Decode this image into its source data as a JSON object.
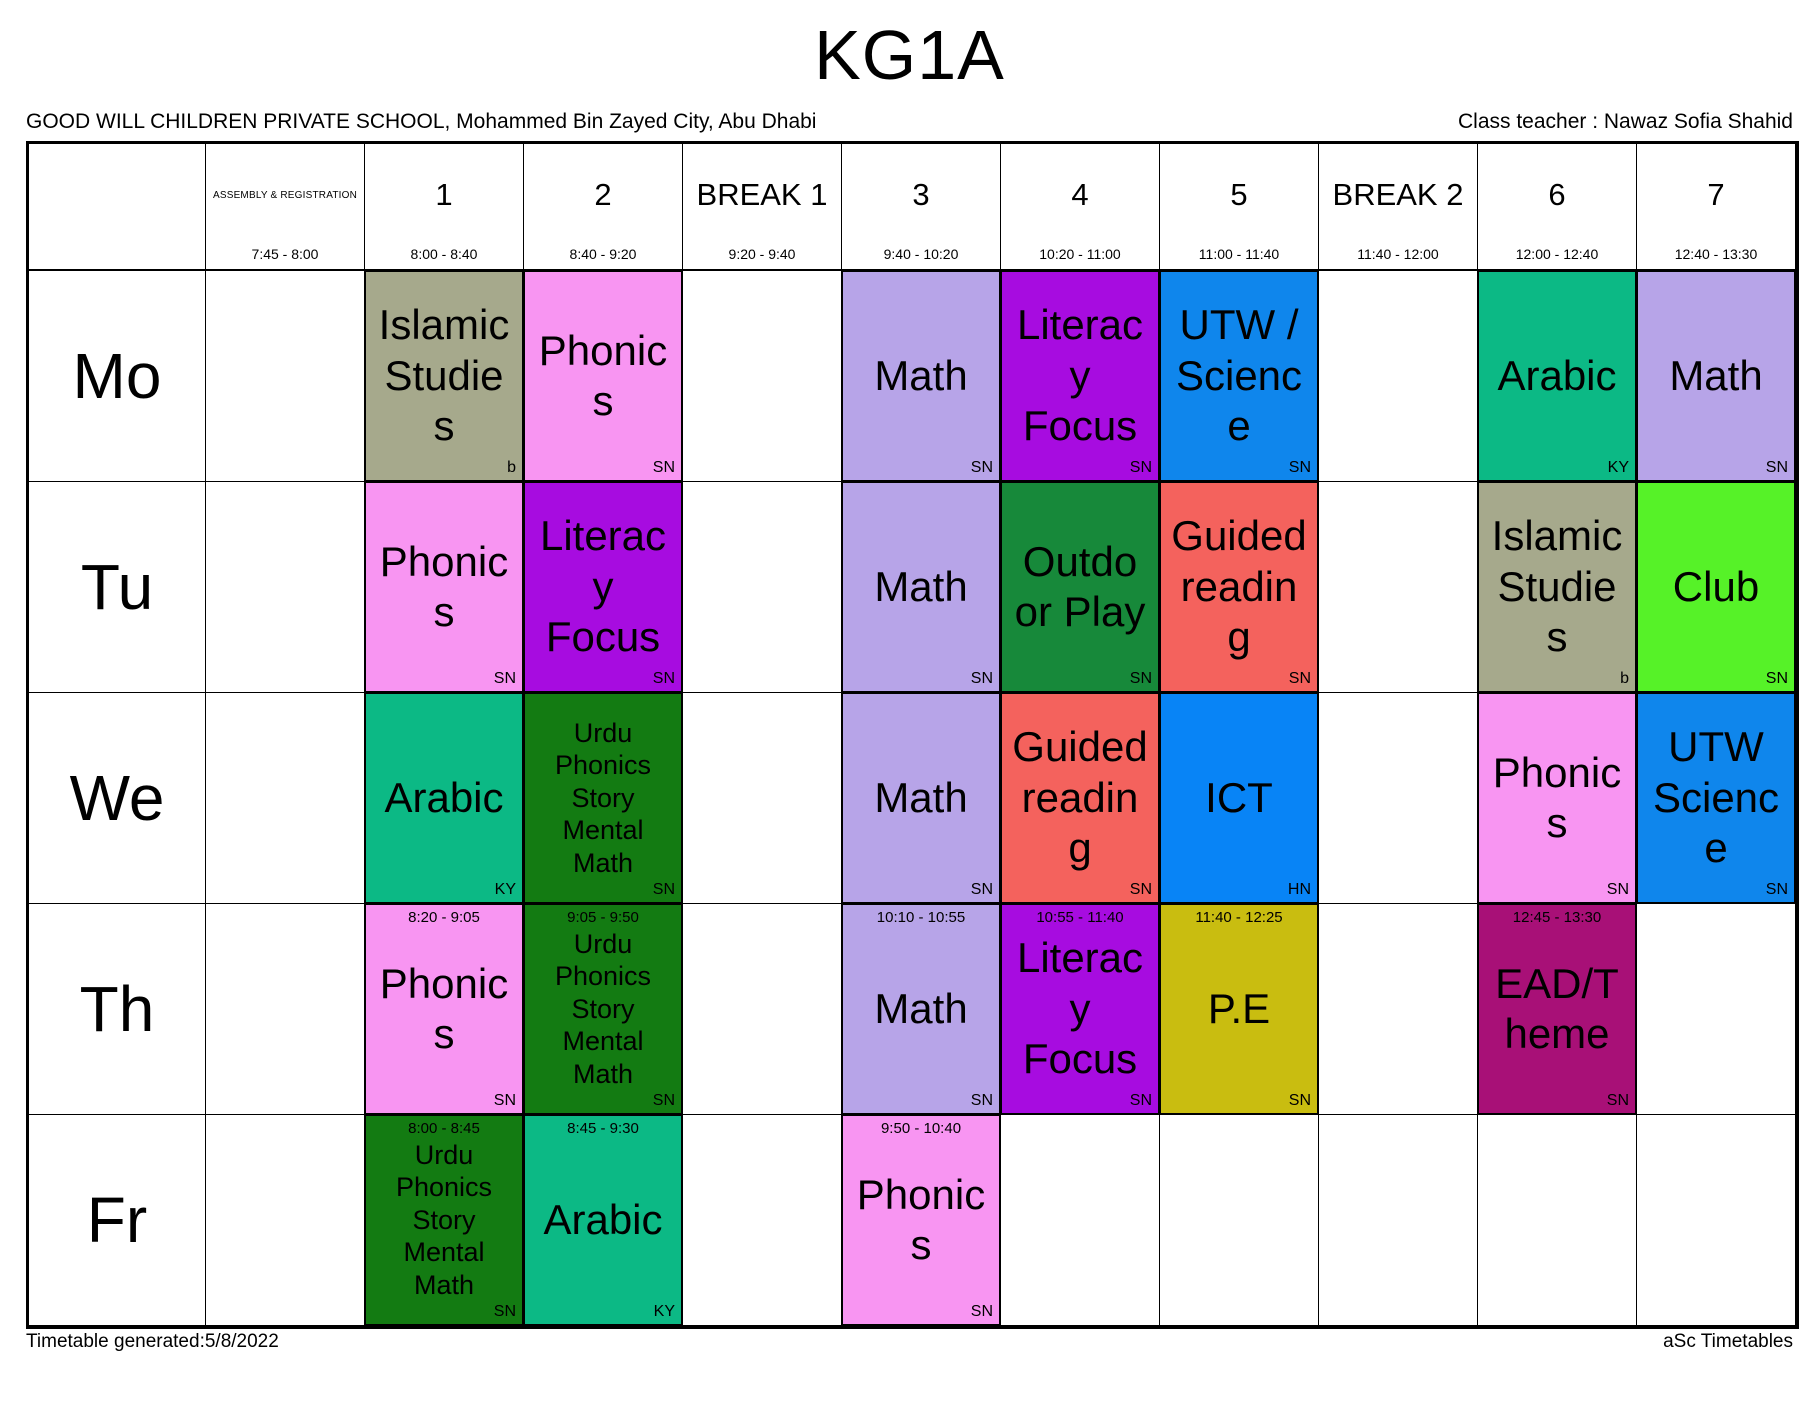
{
  "page": {
    "title": "KG1A",
    "school": "GOOD WILL CHILDREN PRIVATE SCHOOL, Mohammed Bin Zayed City, Abu Dhabi",
    "class_teacher": "Class teacher : Nawaz Sofia Shahid",
    "footer_left": "Timetable generated:5/8/2022",
    "footer_right": "aSc Timetables"
  },
  "colors": {
    "islamic_studies": "#a6a98c",
    "phonics": "#f895f2",
    "math": "#b7a4e8",
    "literacy_focus": "#a70ce0",
    "utw_science": "#0f86ec",
    "arabic": "#0cb985",
    "outdoor_play": "#17893a",
    "guided_reading": "#f4625d",
    "club": "#56f228",
    "urdu_mix": "#137b12",
    "ict": "#0884f6",
    "pe": "#c9bd10",
    "ead_theme": "#a81077"
  },
  "columns": [
    {
      "id": "assembly",
      "label": "ASSEMBLY & REGISTRATION",
      "time": "7:45 - 8:00",
      "small": true
    },
    {
      "id": "1",
      "label": "1",
      "time": "8:00 - 8:40"
    },
    {
      "id": "2",
      "label": "2",
      "time": "8:40 - 9:20"
    },
    {
      "id": "break1",
      "label": "BREAK 1",
      "time": "9:20 - 9:40"
    },
    {
      "id": "3",
      "label": "3",
      "time": "9:40 - 10:20"
    },
    {
      "id": "4",
      "label": "4",
      "time": "10:20 - 11:00"
    },
    {
      "id": "5",
      "label": "5",
      "time": "11:00 - 11:40"
    },
    {
      "id": "break2",
      "label": "BREAK 2",
      "time": "11:40 - 12:00"
    },
    {
      "id": "6",
      "label": "6",
      "time": "12:00 - 12:40"
    },
    {
      "id": "7",
      "label": "7",
      "time": "12:40 - 13:30"
    }
  ],
  "days": [
    {
      "id": "mo",
      "label": "Mo"
    },
    {
      "id": "tu",
      "label": "Tu"
    },
    {
      "id": "we",
      "label": "We"
    },
    {
      "id": "th",
      "label": "Th"
    },
    {
      "id": "fr",
      "label": "Fr"
    }
  ],
  "lessons": [
    {
      "day": "mo",
      "col": "1",
      "subject": "Islamic Studies",
      "teacher": "b",
      "color": "islamic_studies"
    },
    {
      "day": "mo",
      "col": "2",
      "subject": "Phonics",
      "teacher": "SN",
      "color": "phonics"
    },
    {
      "day": "mo",
      "col": "3",
      "subject": "Math",
      "teacher": "SN",
      "color": "math"
    },
    {
      "day": "mo",
      "col": "4",
      "subject": "Literacy Focus",
      "teacher": "SN",
      "color": "literacy_focus"
    },
    {
      "day": "mo",
      "col": "5",
      "subject": "UTW / Science",
      "teacher": "SN",
      "color": "utw_science"
    },
    {
      "day": "mo",
      "col": "6",
      "subject": "Arabic",
      "teacher": "KY",
      "color": "arabic"
    },
    {
      "day": "mo",
      "col": "7",
      "subject": "Math",
      "teacher": "SN",
      "color": "math"
    },
    {
      "day": "tu",
      "col": "1",
      "subject": "Phonics",
      "teacher": "SN",
      "color": "phonics"
    },
    {
      "day": "tu",
      "col": "2",
      "subject": "Literacy Focus",
      "teacher": "SN",
      "color": "literacy_focus"
    },
    {
      "day": "tu",
      "col": "3",
      "subject": "Math",
      "teacher": "SN",
      "color": "math"
    },
    {
      "day": "tu",
      "col": "4",
      "subject": "Outdoor Play",
      "teacher": "SN",
      "color": "outdoor_play"
    },
    {
      "day": "tu",
      "col": "5",
      "subject": "Guided reading",
      "teacher": "SN",
      "color": "guided_reading"
    },
    {
      "day": "tu",
      "col": "6",
      "subject": "Islamic Studies",
      "teacher": "b",
      "color": "islamic_studies"
    },
    {
      "day": "tu",
      "col": "7",
      "subject": "Club",
      "teacher": "SN",
      "color": "club"
    },
    {
      "day": "we",
      "col": "1",
      "subject": "Arabic",
      "teacher": "KY",
      "color": "arabic"
    },
    {
      "day": "we",
      "col": "2",
      "subject": "Urdu Phonics Story Mental Math",
      "teacher": "SN",
      "color": "urdu_mix",
      "small": true
    },
    {
      "day": "we",
      "col": "3",
      "subject": "Math",
      "teacher": "SN",
      "color": "math"
    },
    {
      "day": "we",
      "col": "4",
      "subject": "Guided reading",
      "teacher": "SN",
      "color": "guided_reading"
    },
    {
      "day": "we",
      "col": "5",
      "subject": "ICT",
      "teacher": "HN",
      "color": "ict"
    },
    {
      "day": "we",
      "col": "6",
      "subject": "Phonics",
      "teacher": "SN",
      "color": "phonics"
    },
    {
      "day": "we",
      "col": "7",
      "subject": "UTW Science",
      "teacher": "SN",
      "color": "utw_science"
    },
    {
      "day": "th",
      "col": "1",
      "subject": "Phonics",
      "teacher": "SN",
      "color": "phonics",
      "time": "8:20 - 9:05"
    },
    {
      "day": "th",
      "col": "2",
      "subject": "Urdu Phonics Story Mental Math",
      "teacher": "SN",
      "color": "urdu_mix",
      "small": true,
      "time": "9:05 - 9:50"
    },
    {
      "day": "th",
      "col": "3",
      "subject": "Math",
      "teacher": "SN",
      "color": "math",
      "time": "10:10 - 10:55"
    },
    {
      "day": "th",
      "col": "4",
      "subject": "Literacy Focus",
      "teacher": "SN",
      "color": "literacy_focus",
      "time": "10:55 - 11:40"
    },
    {
      "day": "th",
      "col": "5",
      "subject": "P.E",
      "teacher": "SN",
      "color": "pe",
      "time": "11:40 - 12:25"
    },
    {
      "day": "th",
      "col": "6",
      "subject": "EAD/Theme",
      "teacher": "SN",
      "color": "ead_theme",
      "time": "12:45 - 13:30"
    },
    {
      "day": "fr",
      "col": "1",
      "subject": "Urdu Phonics Story Mental Math",
      "teacher": "SN",
      "color": "urdu_mix",
      "small": true,
      "time": "8:00 - 8:45"
    },
    {
      "day": "fr",
      "col": "2",
      "subject": "Arabic",
      "teacher": "KY",
      "color": "arabic",
      "time": "8:45 - 9:30"
    },
    {
      "day": "fr",
      "col": "3",
      "subject": "Phonics",
      "teacher": "SN",
      "color": "phonics",
      "time": "9:50 - 10:40"
    }
  ]
}
